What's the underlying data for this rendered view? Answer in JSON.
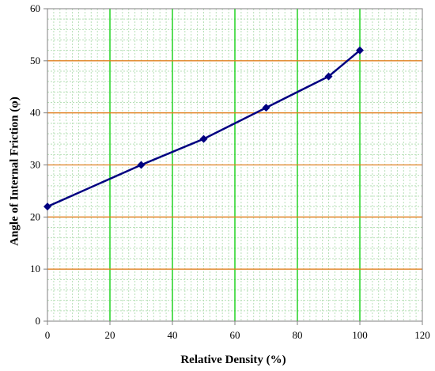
{
  "chart_data": {
    "type": "line",
    "title": "",
    "xlabel": "Relative Density (%)",
    "ylabel": "Angle of Internal  Friction  (φ)",
    "xlim": [
      0,
      120
    ],
    "ylim": [
      0,
      60
    ],
    "xticks": [
      "0",
      "20",
      "40",
      "60",
      "80",
      "100",
      "120"
    ],
    "yticks": [
      "0",
      "10",
      "20",
      "30",
      "40",
      "50",
      "60"
    ],
    "grid": true,
    "legend": "none",
    "series": [
      {
        "color": "#000080",
        "marker": "diamond",
        "x": [
          0,
          30,
          50,
          70,
          90,
          100
        ],
        "y": [
          22,
          30,
          35,
          41,
          47,
          52
        ]
      }
    ],
    "colors": {
      "major_vertical_grid": "#00cc00",
      "major_horizontal_grid": "#e08020",
      "minor_grid": "#b8e0b8",
      "line": "#000080"
    }
  }
}
